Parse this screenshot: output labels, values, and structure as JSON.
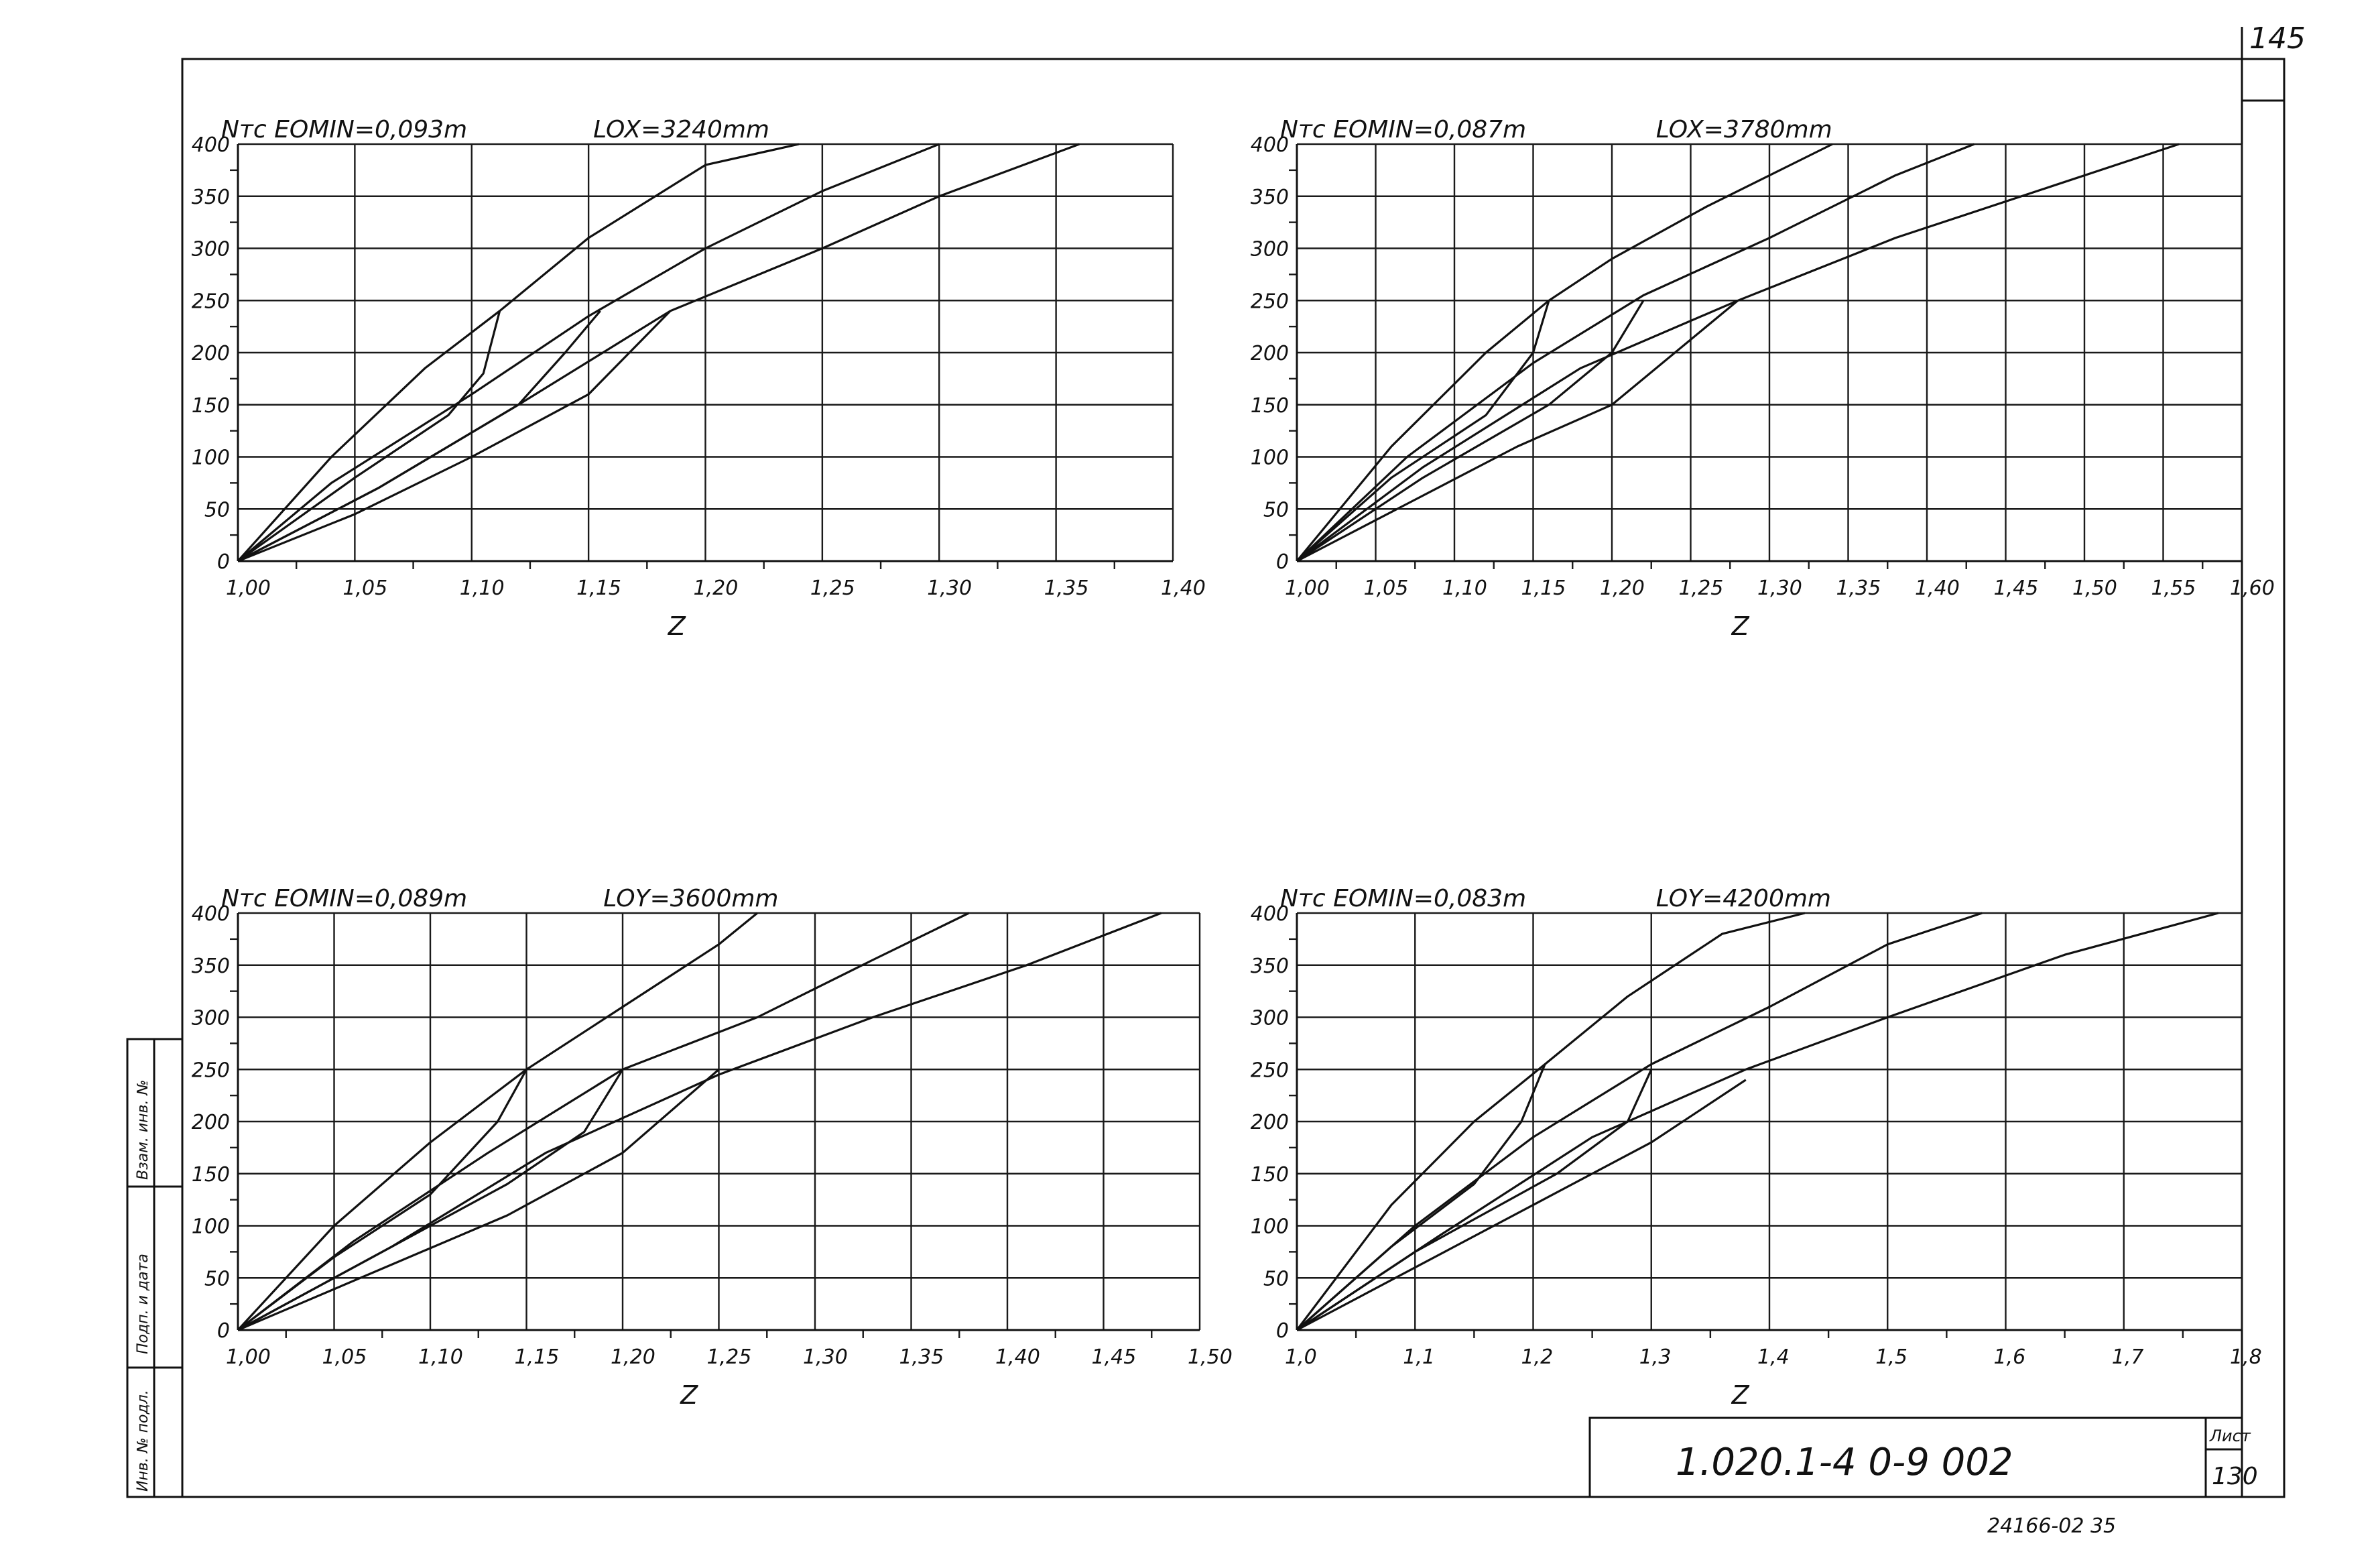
{
  "sheet": {
    "page_number": "145",
    "document_code": "1.020.1-4 0-9 002",
    "sheet_label": "Лист",
    "sheet_number": "130",
    "archive_number": "24166-02 35",
    "side_stamp": [
      "Инв. № подл.",
      "Подп. и дата",
      "Взам. инв. №"
    ]
  },
  "chart_data": [
    {
      "type": "line",
      "header_left": "Nтс  EOMIN=0,093m",
      "header_right": "LOX=3240mm",
      "xlabel": "Z",
      "xlim": [
        1.0,
        1.4
      ],
      "ylim": [
        0,
        400
      ],
      "x_ticks": [
        "1,00",
        "1,05",
        "1,10",
        "1,15",
        "1,20",
        "1,25",
        "1,30",
        "1,35",
        "1,40"
      ],
      "x_tick_values": [
        1.0,
        1.05,
        1.1,
        1.15,
        1.2,
        1.25,
        1.3,
        1.35,
        1.4
      ],
      "y_ticks": [
        "0",
        "50",
        "100",
        "150",
        "200",
        "250",
        "300",
        "350",
        "400"
      ],
      "y_tick_values": [
        0,
        50,
        100,
        150,
        200,
        250,
        300,
        350,
        400
      ],
      "series": [
        {
          "x": [
            1.0,
            1.04,
            1.08,
            1.112,
            1.15,
            1.2,
            1.24
          ],
          "y": [
            0,
            100,
            185,
            240,
            310,
            380,
            400
          ]
        },
        {
          "x": [
            1.0,
            1.04,
            1.1,
            1.15,
            1.2,
            1.25,
            1.3
          ],
          "y": [
            0,
            75,
            160,
            235,
            300,
            355,
            400
          ]
        },
        {
          "x": [
            1.0,
            1.06,
            1.12,
            1.185,
            1.25,
            1.3,
            1.36
          ],
          "y": [
            0,
            70,
            150,
            240,
            300,
            350,
            400
          ]
        },
        {
          "x": [
            1.0,
            1.05,
            1.09,
            1.105,
            1.112
          ],
          "y": [
            0,
            80,
            140,
            180,
            240
          ]
        },
        {
          "x": [
            1.0,
            1.06,
            1.12,
            1.14,
            1.155
          ],
          "y": [
            0,
            70,
            150,
            200,
            240
          ]
        },
        {
          "x": [
            1.0,
            1.05,
            1.1,
            1.15,
            1.185
          ],
          "y": [
            0,
            45,
            100,
            160,
            240
          ]
        }
      ]
    },
    {
      "type": "line",
      "header_left": "Nтс  EOMIN=0,087m",
      "header_right": "LOX=3780mm",
      "xlabel": "Z",
      "xlim": [
        1.0,
        1.6
      ],
      "ylim": [
        0,
        400
      ],
      "x_ticks": [
        "1,00",
        "1,05",
        "1,10",
        "1,15",
        "1,20",
        "1,25",
        "1,30",
        "1,35",
        "1,40",
        "1,45",
        "1,50",
        "1,55",
        "1,60"
      ],
      "x_tick_values": [
        1.0,
        1.05,
        1.1,
        1.15,
        1.2,
        1.25,
        1.3,
        1.35,
        1.4,
        1.45,
        1.5,
        1.55,
        1.6
      ],
      "y_ticks": [
        "0",
        "50",
        "100",
        "150",
        "200",
        "250",
        "300",
        "350",
        "400"
      ],
      "y_tick_values": [
        0,
        50,
        100,
        150,
        200,
        250,
        300,
        350,
        400
      ],
      "series": [
        {
          "x": [
            1.0,
            1.06,
            1.12,
            1.16,
            1.2,
            1.26,
            1.34
          ],
          "y": [
            0,
            110,
            200,
            250,
            290,
            340,
            400
          ]
        },
        {
          "x": [
            1.0,
            1.07,
            1.15,
            1.22,
            1.3,
            1.38,
            1.43
          ],
          "y": [
            0,
            100,
            190,
            255,
            310,
            370,
            400
          ]
        },
        {
          "x": [
            1.0,
            1.08,
            1.18,
            1.28,
            1.38,
            1.48,
            1.56
          ],
          "y": [
            0,
            90,
            185,
            250,
            310,
            360,
            400
          ]
        },
        {
          "x": [
            1.0,
            1.06,
            1.12,
            1.15,
            1.16
          ],
          "y": [
            0,
            80,
            140,
            200,
            250
          ]
        },
        {
          "x": [
            1.0,
            1.08,
            1.16,
            1.2,
            1.22
          ],
          "y": [
            0,
            80,
            150,
            200,
            250
          ]
        },
        {
          "x": [
            1.0,
            1.07,
            1.14,
            1.2,
            1.28
          ],
          "y": [
            0,
            55,
            110,
            150,
            250
          ]
        }
      ]
    },
    {
      "type": "line",
      "header_left": "Nтс  EOMIN=0,089m",
      "header_right": "LOY=3600mm",
      "xlabel": "Z",
      "xlim": [
        1.0,
        1.5
      ],
      "ylim": [
        0,
        400
      ],
      "x_ticks": [
        "1,00",
        "1,05",
        "1,10",
        "1,15",
        "1,20",
        "1,25",
        "1,30",
        "1,35",
        "1,40",
        "1,45",
        "1,50"
      ],
      "x_tick_values": [
        1.0,
        1.05,
        1.1,
        1.15,
        1.2,
        1.25,
        1.3,
        1.35,
        1.4,
        1.45,
        1.5
      ],
      "y_ticks": [
        "0",
        "50",
        "100",
        "150",
        "200",
        "250",
        "300",
        "350",
        "400"
      ],
      "y_tick_values": [
        0,
        50,
        100,
        150,
        200,
        250,
        300,
        350,
        400
      ],
      "series": [
        {
          "x": [
            1.0,
            1.05,
            1.1,
            1.15,
            1.2,
            1.25,
            1.27
          ],
          "y": [
            0,
            100,
            180,
            250,
            310,
            370,
            400
          ]
        },
        {
          "x": [
            1.0,
            1.06,
            1.13,
            1.2,
            1.27,
            1.33,
            1.38
          ],
          "y": [
            0,
            85,
            170,
            250,
            300,
            355,
            400
          ]
        },
        {
          "x": [
            1.0,
            1.08,
            1.16,
            1.25,
            1.33,
            1.41,
            1.48
          ],
          "y": [
            0,
            80,
            170,
            245,
            300,
            350,
            400
          ]
        },
        {
          "x": [
            1.0,
            1.05,
            1.1,
            1.135,
            1.15
          ],
          "y": [
            0,
            70,
            130,
            200,
            250
          ]
        },
        {
          "x": [
            1.0,
            1.07,
            1.14,
            1.18,
            1.2
          ],
          "y": [
            0,
            70,
            140,
            190,
            250
          ]
        },
        {
          "x": [
            1.0,
            1.07,
            1.14,
            1.2,
            1.25
          ],
          "y": [
            0,
            55,
            110,
            170,
            250
          ]
        }
      ]
    },
    {
      "type": "line",
      "header_left": "Nтс  EOMIN=0,083m",
      "header_right": "LOY=4200mm",
      "xlabel": "Z",
      "xlim": [
        1.0,
        1.8
      ],
      "ylim": [
        0,
        400
      ],
      "x_ticks": [
        "1,0",
        "1,1",
        "1,2",
        "1,3",
        "1,4",
        "1,5",
        "1,6",
        "1,7",
        "1,8"
      ],
      "x_tick_values": [
        1.0,
        1.1,
        1.2,
        1.3,
        1.4,
        1.5,
        1.6,
        1.7,
        1.8
      ],
      "y_ticks": [
        "0",
        "50",
        "100",
        "150",
        "200",
        "250",
        "300",
        "350",
        "400"
      ],
      "y_tick_values": [
        0,
        50,
        100,
        150,
        200,
        250,
        300,
        350,
        400
      ],
      "series": [
        {
          "x": [
            1.0,
            1.08,
            1.15,
            1.21,
            1.28,
            1.36,
            1.43
          ],
          "y": [
            0,
            120,
            200,
            255,
            320,
            380,
            400
          ]
        },
        {
          "x": [
            1.0,
            1.1,
            1.2,
            1.3,
            1.4,
            1.5,
            1.58
          ],
          "y": [
            0,
            100,
            185,
            255,
            310,
            370,
            400
          ]
        },
        {
          "x": [
            1.0,
            1.12,
            1.25,
            1.38,
            1.5,
            1.65,
            1.78
          ],
          "y": [
            0,
            90,
            185,
            250,
            300,
            360,
            400
          ]
        },
        {
          "x": [
            1.0,
            1.08,
            1.15,
            1.19,
            1.21
          ],
          "y": [
            0,
            80,
            140,
            200,
            255
          ]
        },
        {
          "x": [
            1.0,
            1.1,
            1.22,
            1.28,
            1.3
          ],
          "y": [
            0,
            75,
            150,
            200,
            250
          ]
        },
        {
          "x": [
            1.0,
            1.1,
            1.2,
            1.3,
            1.38
          ],
          "y": [
            0,
            60,
            120,
            180,
            240
          ]
        }
      ]
    }
  ]
}
